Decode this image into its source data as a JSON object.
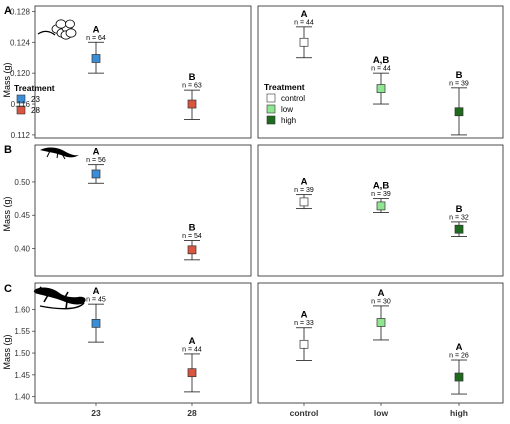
{
  "colors": {
    "23": "#3a8ed8",
    "28": "#d9553f",
    "control": "#ffffff",
    "low": "#90e690",
    "high": "#1e6b1e"
  },
  "chart_data": [
    {
      "type": "scatter",
      "panel": "A",
      "ylabel": "Mass (g)",
      "ylim": [
        0.1116,
        0.1287
      ],
      "yticks": [
        0.112,
        0.116,
        0.12,
        0.124,
        0.128
      ],
      "ytick_labels": [
        "0.112",
        "0.116",
        "0.120",
        "0.124",
        "0.128"
      ],
      "legend": {
        "title": "Treatment",
        "entries": [
          {
            "label": "23",
            "color_key": "23"
          },
          {
            "label": "28",
            "color_key": "28"
          }
        ]
      },
      "categories": [
        "23",
        "28"
      ],
      "color_keys": [
        "23",
        "28"
      ],
      "values": [
        0.1219,
        0.116
      ],
      "err_low": [
        0.12,
        0.114
      ],
      "err_high": [
        0.124,
        0.1178
      ],
      "sig": [
        "A",
        "B"
      ],
      "n": [
        "n = 64",
        "n = 63"
      ]
    },
    {
      "type": "scatter",
      "panel": "A",
      "ylim": [
        0.1116,
        0.1287
      ],
      "yticks": [
        0.112,
        0.116,
        0.12,
        0.124,
        0.128
      ],
      "legend": {
        "title": "Treatment",
        "entries": [
          {
            "label": "control",
            "color_key": "control"
          },
          {
            "label": "low",
            "color_key": "low"
          },
          {
            "label": "high",
            "color_key": "high"
          }
        ]
      },
      "categories": [
        "control",
        "low",
        "high"
      ],
      "color_keys": [
        "control",
        "low",
        "high"
      ],
      "values": [
        0.124,
        0.118,
        0.115
      ],
      "err_low": [
        0.122,
        0.116,
        0.112
      ],
      "err_high": [
        0.126,
        0.12,
        0.1181
      ],
      "sig": [
        "A",
        "A,B",
        "B"
      ],
      "n": [
        "n = 44",
        "n = 44",
        "n = 39"
      ]
    },
    {
      "type": "scatter",
      "panel": "B",
      "ylabel": "Mass (g)",
      "ylim": [
        0.3587,
        0.5555
      ],
      "yticks": [
        0.4,
        0.45,
        0.5
      ],
      "ytick_labels": [
        "0.40",
        "0.45",
        "0.50"
      ],
      "categories": [
        "23",
        "28"
      ],
      "color_keys": [
        "23",
        "28"
      ],
      "values": [
        0.512,
        0.398
      ],
      "err_low": [
        0.498,
        0.383
      ],
      "err_high": [
        0.526,
        0.412
      ],
      "sig": [
        "A",
        "B"
      ],
      "n": [
        "n = 56",
        "n = 54"
      ]
    },
    {
      "type": "scatter",
      "panel": "B",
      "ylim": [
        0.3587,
        0.5555
      ],
      "yticks": [
        0.4,
        0.45,
        0.5
      ],
      "categories": [
        "control",
        "low",
        "high"
      ],
      "color_keys": [
        "control",
        "low",
        "high"
      ],
      "values": [
        0.47,
        0.464,
        0.429
      ],
      "err_low": [
        0.46,
        0.454,
        0.418
      ],
      "err_high": [
        0.481,
        0.475,
        0.44
      ],
      "sig": [
        "A",
        "A,B",
        "B"
      ],
      "n": [
        "n = 39",
        "n = 39",
        "n = 32"
      ]
    },
    {
      "type": "scatter",
      "panel": "C",
      "ylabel": "Mass (g)",
      "ylim": [
        1.3855,
        1.6605
      ],
      "yticks": [
        1.4,
        1.45,
        1.5,
        1.55,
        1.6
      ],
      "ytick_labels": [
        "1.40",
        "1.45",
        "1.50",
        "1.55",
        "1.60"
      ],
      "categories": [
        "23",
        "28"
      ],
      "color_keys": [
        "23",
        "28"
      ],
      "values": [
        1.568,
        1.455
      ],
      "err_low": [
        1.525,
        1.411
      ],
      "err_high": [
        1.612,
        1.498
      ],
      "sig": [
        "A",
        "A"
      ],
      "n": [
        "n = 45",
        "n = 44"
      ]
    },
    {
      "type": "scatter",
      "panel": "C",
      "ylim": [
        1.3855,
        1.6605
      ],
      "yticks": [
        1.4,
        1.45,
        1.5,
        1.55,
        1.6
      ],
      "categories": [
        "control",
        "low",
        "high"
      ],
      "color_keys": [
        "control",
        "low",
        "high"
      ],
      "values": [
        1.52,
        1.57,
        1.445
      ],
      "err_low": [
        1.483,
        1.53,
        1.406
      ],
      "err_high": [
        1.558,
        1.608,
        1.484
      ],
      "sig": [
        "A",
        "A",
        "A"
      ],
      "n": [
        "n = 33",
        "n = 30",
        "n = 26"
      ]
    }
  ],
  "icons": {
    "A": "egg-cluster-icon",
    "B": "hatchling-icon",
    "C": "adult-salamander-icon"
  }
}
